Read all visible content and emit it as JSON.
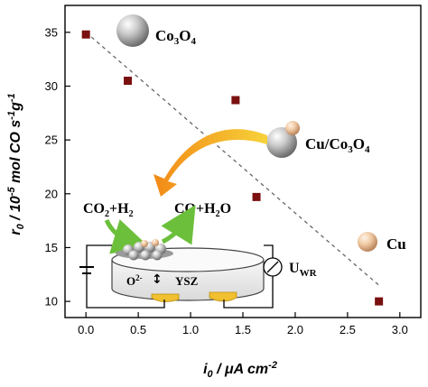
{
  "chart_data": {
    "type": "scatter",
    "xlabel_parts": [
      "i",
      "0",
      " / μA cm",
      "-2"
    ],
    "ylabel_parts": [
      "r",
      "0",
      " / 10",
      "-5",
      " mol CO s",
      "-1",
      "g",
      "-1"
    ],
    "x_ticks": [
      "0.0",
      "0.5",
      "1.0",
      "1.5",
      "2.0",
      "2.5",
      "3.0"
    ],
    "y_ticks": [
      "10",
      "15",
      "20",
      "25",
      "30",
      "35"
    ],
    "xlim": [
      -0.2,
      3.2
    ],
    "ylim": [
      8.5,
      37.5
    ],
    "points": [
      {
        "x": 0.0,
        "y": 34.8
      },
      {
        "x": 0.4,
        "y": 30.5
      },
      {
        "x": 1.43,
        "y": 28.7
      },
      {
        "x": 1.63,
        "y": 19.7
      },
      {
        "x": 2.8,
        "y": 10.0
      }
    ],
    "trend_line": {
      "x": [
        0.0,
        2.8
      ],
      "y": [
        35.0,
        11.5
      ]
    },
    "marker_color": "#7a1010",
    "trend_color": "#666666"
  },
  "annotations": {
    "co3o4": [
      "Co",
      "3",
      "O",
      "4"
    ],
    "cu_co3o4": [
      "Cu/Co",
      "3",
      "O",
      "4"
    ],
    "cu": "Cu",
    "reactants": [
      "CO",
      "2",
      "+H",
      "2"
    ],
    "products": [
      "CO+H",
      "2",
      "O"
    ],
    "ion": [
      "O",
      "2-"
    ],
    "electrolyte": "YSZ",
    "voltage": [
      "U",
      "WR"
    ]
  }
}
